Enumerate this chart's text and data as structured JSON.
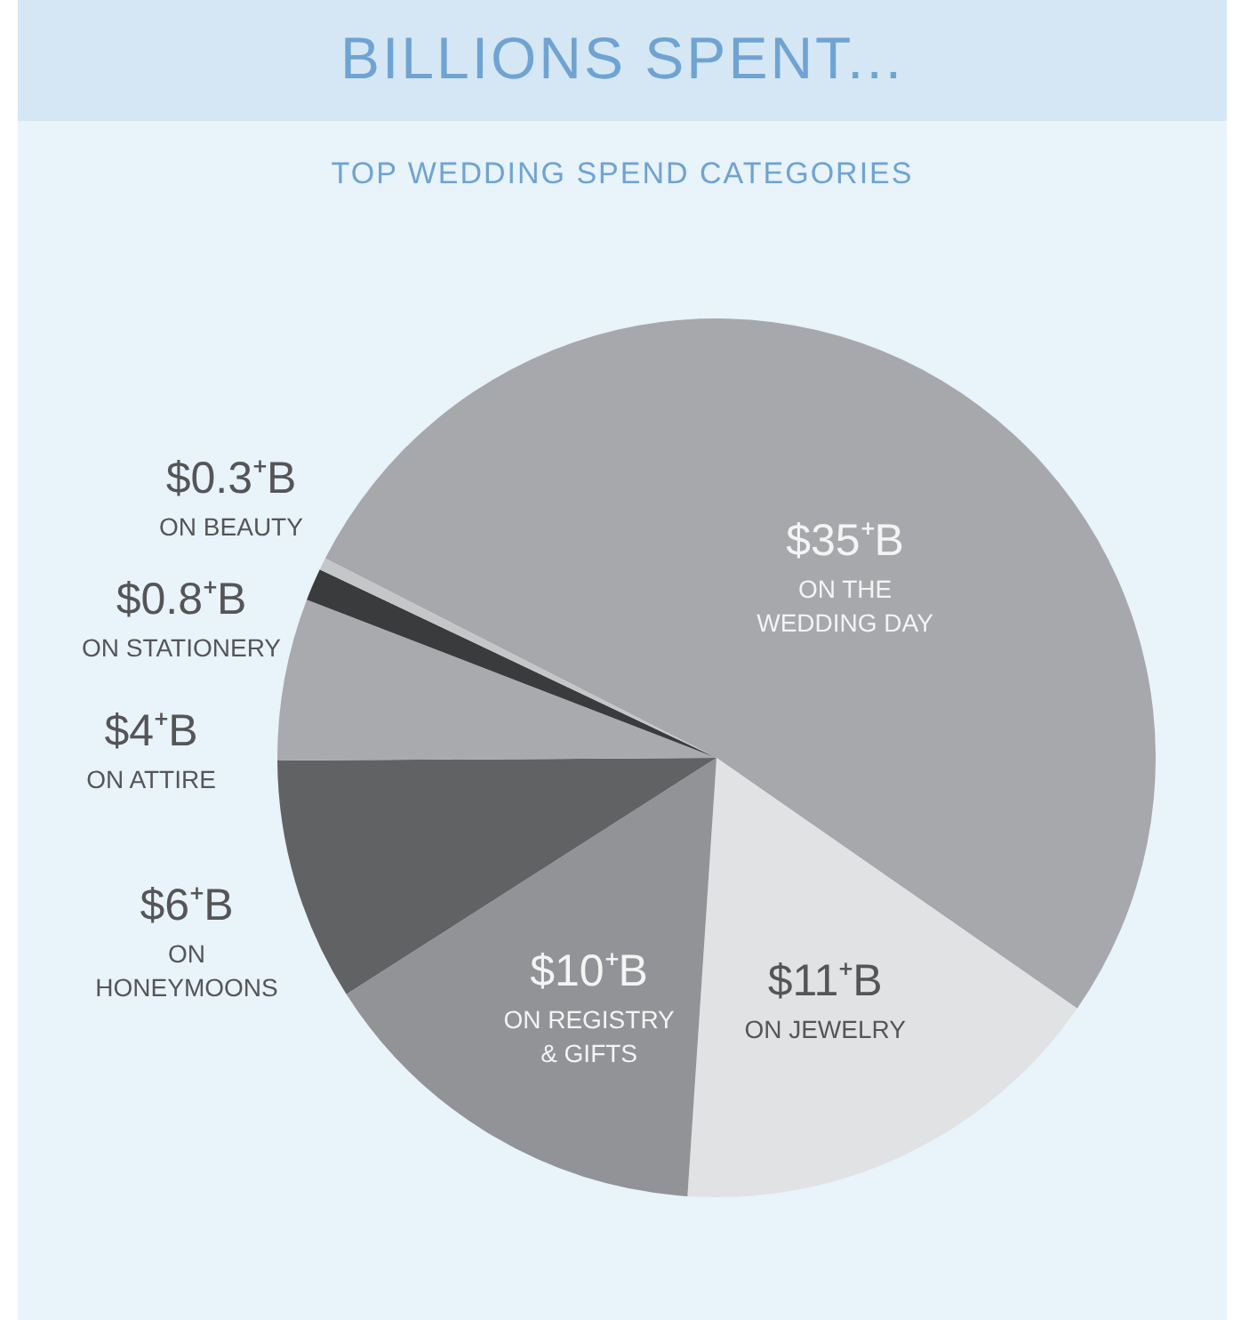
{
  "chart_data": {
    "type": "pie",
    "title": "BILLIONS SPENT...",
    "subtitle": "TOP WEDDING SPEND CATEGORIES",
    "categories": [
      "ON THE WEDDING DAY",
      "ON JEWELRY",
      "ON REGISTRY & GIFTS",
      "ON HONEYMOONS",
      "ON ATTIRE",
      "ON STATIONERY",
      "ON BEAUTY"
    ],
    "values": [
      35,
      11,
      10,
      6,
      4,
      0.8,
      0.3
    ],
    "value_labels": [
      "$35⁺B",
      "$11⁺B",
      "$10⁺B",
      "$6⁺B",
      "$4⁺B",
      "$0.8⁺B",
      "$0.3⁺B"
    ],
    "colors": [
      "#a7a8ab",
      "#e1e2e4",
      "#929396",
      "#616264",
      "#a9aaad",
      "#3a3b3d",
      "#c5c6c8"
    ],
    "legend": false
  }
}
